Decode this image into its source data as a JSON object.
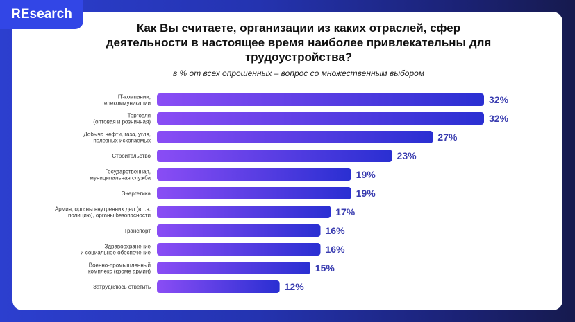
{
  "brand": "REsearch",
  "chart_data": {
    "type": "bar",
    "orientation": "horizontal",
    "title": "Как Вы считаете, организации из каких отраслей, сфер деятельности в настоящее время наиболее привлекательны для трудоустройства?",
    "subtitle": "в % от всех опрошенных – вопрос со множественным выбором",
    "categories": [
      [
        "IT-компании,",
        "телекоммуникации"
      ],
      [
        "Торговля",
        "(оптовая и розничная)"
      ],
      [
        "Добыча нефти, газа, угля,",
        "полезных ископаемых"
      ],
      [
        "Строительство"
      ],
      [
        "Государственная,",
        "муниципальная служба"
      ],
      [
        "Энергетика"
      ],
      [
        "Армия, органы внутренних дел (в т.ч.",
        "полицию), органы безопасности"
      ],
      [
        "Транспорт"
      ],
      [
        "Здравоохранение",
        "и социальное обеспечение"
      ],
      [
        "Военно-промышленный",
        "комплекс (кроме армии)"
      ],
      [
        "Затрудняюсь ответить"
      ]
    ],
    "values": [
      32,
      32,
      27,
      23,
      19,
      19,
      17,
      16,
      16,
      15,
      12
    ],
    "value_suffix": "%",
    "grid": false,
    "colors": {
      "bar_start": "#8a4df5",
      "bar_end": "#2a2fd2",
      "value": "#3a3db0"
    }
  }
}
